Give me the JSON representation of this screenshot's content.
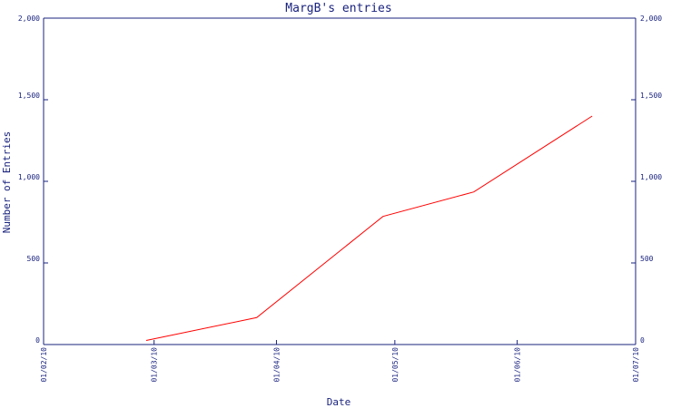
{
  "chart_data": {
    "type": "line",
    "title": "MargB's entries",
    "xlabel": "Date",
    "ylabel": "Number of Entries",
    "y_ticks": [
      "0",
      "500",
      "1,000",
      "1,500",
      "2,000"
    ],
    "y_tick_values": [
      0,
      500,
      1000,
      1500,
      2000
    ],
    "x_ticks": [
      "01/02/10",
      "01/03/10",
      "01/04/10",
      "01/05/10",
      "01/06/10",
      "01/07/10"
    ],
    "x_tick_values": [
      "2010-02-01",
      "2010-03-01",
      "2010-04-01",
      "2010-05-01",
      "2010-06-01",
      "2010-07-01"
    ],
    "xlim": [
      "2010-02-01",
      "2010-07-01"
    ],
    "ylim": [
      0,
      2000
    ],
    "grid": false,
    "series": [
      {
        "color": "#ff0000",
        "x": [
          "2010-02-27",
          "2010-03-27",
          "2010-04-28",
          "2010-05-21",
          "2010-06-20"
        ],
        "values": [
          25,
          165,
          785,
          935,
          1400
        ]
      }
    ]
  }
}
